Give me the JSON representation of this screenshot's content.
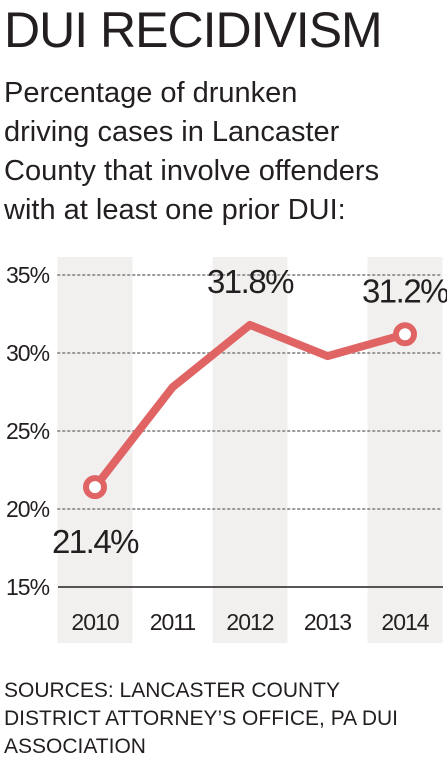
{
  "title": "DUI RECIDIVISM",
  "subtitle": "Percentage of drunken\ndriving cases in Lancaster\nCounty that involve offenders\nwith at least one prior DUI:",
  "sources": "SOURCES:  LANCASTER COUNTY\nDISTRICT ATTORNEY’S OFFICE, PA DUI\nASSOCIATION",
  "colors": {
    "line": "#e06464",
    "band": "#f2f0ef",
    "text": "#231f20",
    "grid": "#999999"
  },
  "chart_data": {
    "type": "line",
    "categories": [
      "2010",
      "2011",
      "2012",
      "2013",
      "2014"
    ],
    "values": [
      21.4,
      27.8,
      31.8,
      29.8,
      31.2
    ],
    "data_labels": [
      {
        "index": 0,
        "text": "21.4%",
        "position": "below"
      },
      {
        "index": 2,
        "text": "31.8%",
        "position": "above"
      },
      {
        "index": 4,
        "text": "31.2%",
        "position": "above"
      }
    ],
    "open_markers": [
      0,
      4
    ],
    "ylim": [
      15,
      35
    ],
    "yticks": [
      15,
      20,
      25,
      30,
      35
    ],
    "ytick_labels": [
      "15%",
      "20%",
      "25%",
      "30%",
      "35%"
    ],
    "alternating_bands": true,
    "grid": "dotted-horizontal"
  }
}
